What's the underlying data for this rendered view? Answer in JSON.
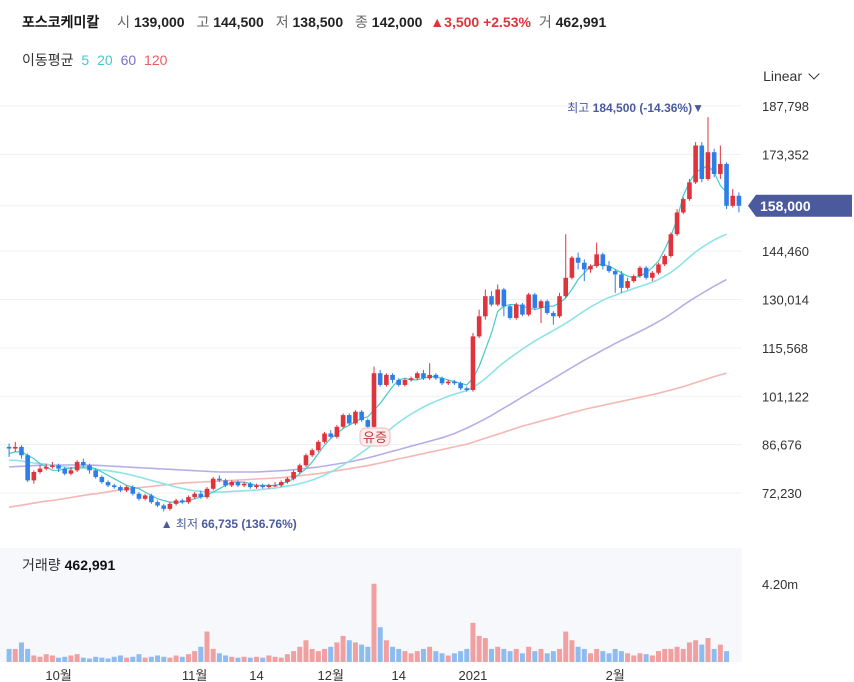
{
  "header": {
    "name": "포스코케미칼",
    "open_label": "시",
    "open": "139,000",
    "high_label": "고",
    "high": "144,500",
    "low_label": "저",
    "low": "138,500",
    "close_label": "종",
    "close": "142,000",
    "change": "▲3,500",
    "change_pct": "+2.53%",
    "volume_label": "거",
    "volume": "462,991"
  },
  "ma_legend": {
    "label": "이동평균",
    "items": [
      {
        "period": "5",
        "color": "#48c9c9"
      },
      {
        "period": "20",
        "color": "#48c9c9"
      },
      {
        "period": "60",
        "color": "#7b6fd0"
      },
      {
        "period": "120",
        "color": "#ef5a5a"
      }
    ]
  },
  "scale_toggle": "Linear",
  "volume_panel": {
    "label": "거래량",
    "value": "462,991",
    "axis_label": "4.20m"
  },
  "colors": {
    "up": "#e0333c",
    "down": "#2d7ee8",
    "ma5": "#48c9c9",
    "ma20": "#8ee3e8",
    "ma60": "#b7aee8",
    "ma120": "#f5b7b4",
    "badge": "#4a5a9c"
  },
  "chart_data": {
    "type": "candlestick",
    "y_ticks": [
      "187,798",
      "173,352",
      "158,000",
      "144,460",
      "130,014",
      "115,568",
      "101,122",
      "86,676",
      "72,230"
    ],
    "y_tick_values": [
      187798,
      173352,
      158000,
      144460,
      130014,
      115568,
      101122,
      86676,
      72230
    ],
    "current_price": "158,000",
    "ylim": [
      60000,
      192000
    ],
    "x_ticks": [
      {
        "label": "10월",
        "index": 8
      },
      {
        "label": "11월",
        "index": 30
      },
      {
        "label": "14",
        "index": 40
      },
      {
        "label": "12월",
        "index": 52
      },
      {
        "label": "14",
        "index": 63
      },
      {
        "label": "2021",
        "index": 75
      },
      {
        "label": "2월",
        "index": 98
      }
    ],
    "high_marker": {
      "label": "최고",
      "value": "184,500",
      "pct": "(-14.36%)",
      "index": 113
    },
    "low_marker": {
      "label": "최저",
      "value": "66,735",
      "pct": "(136.76%)",
      "index": 25
    },
    "event_marker": {
      "label": "유증",
      "index": 59
    },
    "candles": [
      [
        86000,
        85500,
        87000,
        83000
      ],
      [
        85500,
        86000,
        87500,
        84500
      ],
      [
        86000,
        83500,
        86500,
        82500
      ],
      [
        83500,
        76000,
        84000,
        75500
      ],
      [
        76000,
        78500,
        79000,
        75000
      ],
      [
        78500,
        79500,
        80500,
        78000
      ],
      [
        79500,
        80000,
        81000,
        79000
      ],
      [
        80000,
        80500,
        81500,
        79500
      ],
      [
        80500,
        79500,
        81000,
        78500
      ],
      [
        79500,
        78000,
        80000,
        77500
      ],
      [
        78000,
        79000,
        80000,
        77500
      ],
      [
        79000,
        81500,
        82000,
        78500
      ],
      [
        81500,
        80500,
        82500,
        80000
      ],
      [
        80500,
        79000,
        81000,
        78000
      ],
      [
        79000,
        77000,
        79500,
        76500
      ],
      [
        77000,
        75500,
        77500,
        75000
      ],
      [
        75500,
        74500,
        76000,
        74000
      ],
      [
        74500,
        74000,
        75000,
        73500
      ],
      [
        74000,
        73000,
        74500,
        72500
      ],
      [
        73000,
        74000,
        74500,
        72500
      ],
      [
        74000,
        72000,
        74500,
        71500
      ],
      [
        72000,
        70500,
        72500,
        70000
      ],
      [
        70500,
        71500,
        72000,
        70000
      ],
      [
        71500,
        69500,
        72000,
        69000
      ],
      [
        69500,
        68500,
        70000,
        68000
      ],
      [
        68500,
        67500,
        69000,
        66735
      ],
      [
        67500,
        69000,
        69500,
        67000
      ],
      [
        69000,
        70000,
        70500,
        68500
      ],
      [
        70000,
        69500,
        70500,
        69000
      ],
      [
        69500,
        71000,
        71500,
        69000
      ],
      [
        71000,
        72000,
        72500,
        70500
      ],
      [
        72000,
        71000,
        73000,
        70500
      ],
      [
        71000,
        73500,
        74000,
        70500
      ],
      [
        73500,
        76500,
        77000,
        73000
      ],
      [
        76500,
        76000,
        77500,
        75500
      ],
      [
        76000,
        74500,
        76500,
        74000
      ],
      [
        74500,
        75500,
        76000,
        74000
      ],
      [
        75500,
        74500,
        76000,
        74000
      ],
      [
        74500,
        75000,
        75500,
        74000
      ],
      [
        75000,
        74000,
        75500,
        73500
      ],
      [
        74000,
        74500,
        75000,
        73500
      ],
      [
        74500,
        74000,
        75000,
        73500
      ],
      [
        74000,
        74500,
        75000,
        73500
      ],
      [
        74500,
        74500,
        75500,
        74000
      ],
      [
        74500,
        75500,
        76000,
        74000
      ],
      [
        75500,
        76500,
        77000,
        75000
      ],
      [
        76500,
        78500,
        79000,
        76000
      ],
      [
        78500,
        80500,
        81000,
        78000
      ],
      [
        80500,
        83500,
        84000,
        80000
      ],
      [
        83500,
        85000,
        85500,
        83000
      ],
      [
        85000,
        87500,
        88000,
        84500
      ],
      [
        87500,
        90000,
        90500,
        87000
      ],
      [
        90000,
        89000,
        91000,
        88500
      ],
      [
        89000,
        92000,
        92500,
        88500
      ],
      [
        92000,
        95500,
        96000,
        91500
      ],
      [
        95500,
        93000,
        96000,
        92500
      ],
      [
        93000,
        96500,
        97000,
        92500
      ],
      [
        96500,
        94000,
        97000,
        93500
      ],
      [
        94000,
        92000,
        94500,
        91500
      ],
      [
        92000,
        108000,
        110000,
        91500
      ],
      [
        108000,
        104500,
        109000,
        104000
      ],
      [
        104500,
        107500,
        108000,
        104000
      ],
      [
        107500,
        106000,
        108000,
        105000
      ],
      [
        106000,
        104500,
        106500,
        104000
      ],
      [
        104500,
        106000,
        106500,
        104000
      ],
      [
        106000,
        106500,
        107000,
        105500
      ],
      [
        106500,
        108000,
        108500,
        106000
      ],
      [
        108000,
        106500,
        109000,
        106000
      ],
      [
        106500,
        107500,
        111000,
        106000
      ],
      [
        107500,
        106500,
        108000,
        106000
      ],
      [
        106500,
        105000,
        107000,
        104500
      ],
      [
        105000,
        105500,
        106000,
        104500
      ],
      [
        105500,
        105000,
        106000,
        104500
      ],
      [
        105000,
        103500,
        105500,
        103000
      ],
      [
        103500,
        103000,
        104000,
        102500
      ],
      [
        103000,
        119000,
        120000,
        102500
      ],
      [
        119000,
        125000,
        127000,
        118500
      ],
      [
        125000,
        131000,
        133000,
        124000
      ],
      [
        131000,
        128500,
        132500,
        128000
      ],
      [
        128500,
        133000,
        134500,
        128000
      ],
      [
        133000,
        128000,
        133500,
        125000
      ],
      [
        128000,
        124500,
        128500,
        124000
      ],
      [
        124500,
        128500,
        129000,
        124000
      ],
      [
        128500,
        125500,
        129000,
        125000
      ],
      [
        125500,
        131500,
        132000,
        125000
      ],
      [
        131500,
        127500,
        132000,
        127000
      ],
      [
        127500,
        129500,
        130000,
        123000
      ],
      [
        129500,
        126000,
        130000,
        125500
      ],
      [
        126000,
        125000,
        126500,
        122500
      ],
      [
        125000,
        131000,
        132000,
        124500
      ],
      [
        131000,
        136500,
        149500,
        130500
      ],
      [
        136500,
        142500,
        143000,
        136000
      ],
      [
        142500,
        141000,
        144000,
        139000
      ],
      [
        141000,
        139000,
        142000,
        135500
      ],
      [
        139000,
        140000,
        140500,
        138000
      ],
      [
        140000,
        143500,
        147000,
        139500
      ],
      [
        143500,
        140000,
        144000,
        139000
      ],
      [
        140000,
        138500,
        141500,
        138000
      ],
      [
        138500,
        137500,
        139000,
        132000
      ],
      [
        137500,
        133500,
        138500,
        132000
      ],
      [
        133500,
        135500,
        136500,
        133000
      ],
      [
        135500,
        137000,
        137500,
        135000
      ],
      [
        137000,
        139500,
        140000,
        136500
      ],
      [
        139500,
        136500,
        140000,
        136000
      ],
      [
        136500,
        138000,
        138500,
        135500
      ],
      [
        138000,
        140500,
        141000,
        137500
      ],
      [
        140500,
        143000,
        143500,
        140000
      ],
      [
        143000,
        149500,
        150000,
        142500
      ],
      [
        149500,
        156000,
        157000,
        149000
      ],
      [
        156000,
        160000,
        160500,
        155500
      ],
      [
        160000,
        165000,
        166000,
        159500
      ],
      [
        165000,
        176000,
        177000,
        164500
      ],
      [
        176000,
        166000,
        177000,
        165000
      ],
      [
        166000,
        174000,
        184500,
        165500
      ],
      [
        174000,
        167500,
        175000,
        166500
      ],
      [
        167500,
        170500,
        176000,
        166000
      ],
      [
        170500,
        158000,
        171000,
        157000
      ],
      [
        158000,
        161000,
        163000,
        157500
      ],
      [
        161000,
        158000,
        162000,
        156000
      ]
    ],
    "ma5": [
      84000,
      84500,
      84500,
      83500,
      82500,
      81000,
      80000,
      79000,
      79000,
      79500,
      79500,
      80000,
      80000,
      80000,
      79500,
      78500,
      77500,
      76500,
      75500,
      74500,
      74000,
      73500,
      72500,
      71500,
      70500,
      70000,
      69500,
      69500,
      69500,
      70000,
      70500,
      71000,
      71500,
      72500,
      73500,
      74500,
      75500,
      75500,
      75500,
      75000,
      74500,
      74500,
      74500,
      74500,
      75000,
      75500,
      76500,
      78000,
      79500,
      81500,
      84000,
      86500,
      88500,
      90000,
      91500,
      92500,
      93500,
      94500,
      95000,
      97000,
      99000,
      101500,
      104000,
      106000,
      106500,
      106000,
      106000,
      106500,
      107000,
      107000,
      106500,
      106000,
      105500,
      105000,
      104500,
      106500,
      110000,
      115000,
      120000,
      126500,
      128000,
      128500,
      128500,
      128000,
      127500,
      127000,
      127500,
      128000,
      128000,
      129000,
      130500,
      133000,
      136000,
      138000,
      140000,
      140500,
      140500,
      140000,
      139000,
      138000,
      137000,
      136500,
      137000,
      138000,
      139500,
      141500,
      145000,
      149000,
      154000,
      161000,
      165000,
      168000,
      169000,
      170000,
      168000,
      164000,
      162000
    ],
    "ma20": [
      82000,
      82000,
      81800,
      81500,
      81200,
      81000,
      80800,
      80500,
      80300,
      80000,
      79800,
      79700,
      79600,
      79500,
      79300,
      79100,
      78900,
      78600,
      78300,
      77900,
      77500,
      77000,
      76500,
      76000,
      75500,
      75000,
      74500,
      74000,
      73600,
      73200,
      72900,
      72700,
      72600,
      72500,
      72500,
      72600,
      72700,
      72800,
      72900,
      73000,
      73100,
      73300,
      73500,
      73700,
      74000,
      74300,
      74600,
      75000,
      75500,
      76100,
      76800,
      77600,
      78500,
      79500,
      80600,
      81800,
      83000,
      84300,
      85600,
      87100,
      88700,
      90300,
      91900,
      93300,
      94600,
      95800,
      96900,
      97900,
      98800,
      99600,
      100400,
      101100,
      101700,
      102300,
      102800,
      103800,
      105000,
      106400,
      108000,
      109700,
      111200,
      112600,
      113900,
      115200,
      116400,
      117600,
      118700,
      119700,
      120800,
      121800,
      122900,
      124100,
      125400,
      126600,
      127800,
      128800,
      129800,
      130600,
      131300,
      132000,
      132600,
      133300,
      133900,
      134500,
      135200,
      136000,
      137000,
      138100,
      139500,
      141000,
      142700,
      144200,
      145500,
      146700,
      147800,
      148700,
      149500
    ],
    "ma60": [
      80000,
      80100,
      80200,
      80300,
      80400,
      80500,
      80600,
      80600,
      80600,
      80600,
      80600,
      80600,
      80600,
      80600,
      80500,
      80400,
      80300,
      80200,
      80100,
      80000,
      79900,
      79800,
      79700,
      79600,
      79500,
      79400,
      79300,
      79200,
      79100,
      79000,
      78900,
      78800,
      78700,
      78600,
      78500,
      78500,
      78500,
      78500,
      78500,
      78500,
      78500,
      78600,
      78700,
      78800,
      78900,
      79000,
      79200,
      79400,
      79600,
      79800,
      80000,
      80300,
      80600,
      80900,
      81200,
      81500,
      81900,
      82300,
      82700,
      83200,
      83700,
      84200,
      84700,
      85200,
      85700,
      86200,
      86700,
      87200,
      87700,
      88200,
      88700,
      89300,
      90000,
      90800,
      91600,
      92500,
      93400,
      94400,
      95400,
      96500,
      97600,
      98700,
      99800,
      100900,
      102000,
      103100,
      104200,
      105300,
      106400,
      107500,
      108600,
      109700,
      110800,
      111900,
      112900,
      113900,
      114900,
      115900,
      116900,
      117800,
      118700,
      119600,
      120500,
      121400,
      122400,
      123400,
      124500,
      125700,
      127000,
      128300,
      129500,
      130700,
      131800,
      132900,
      134000,
      135000,
      136000
    ],
    "ma120": [
      68000,
      68300,
      68600,
      68900,
      69200,
      69500,
      69800,
      70000,
      70300,
      70600,
      70900,
      71200,
      71500,
      71800,
      72000,
      72300,
      72600,
      72900,
      73200,
      73400,
      73600,
      73800,
      74000,
      74200,
      74400,
      74600,
      74800,
      75000,
      75200,
      75300,
      75400,
      75500,
      75600,
      75700,
      75800,
      75900,
      76000,
      76100,
      76200,
      76300,
      76400,
      76500,
      76600,
      76700,
      76800,
      77000,
      77200,
      77400,
      77600,
      77800,
      78000,
      78300,
      78600,
      78900,
      79200,
      79500,
      79800,
      80100,
      80400,
      80800,
      81200,
      81600,
      82000,
      82400,
      82800,
      83200,
      83600,
      84000,
      84400,
      84800,
      85200,
      85600,
      86000,
      86400,
      86800,
      87400,
      88000,
      88600,
      89200,
      89800,
      90400,
      91000,
      91600,
      92200,
      92700,
      93200,
      93700,
      94200,
      94700,
      95200,
      95700,
      96200,
      96700,
      97200,
      97600,
      98000,
      98400,
      98800,
      99200,
      99600,
      100000,
      100400,
      100800,
      101200,
      101600,
      102000,
      102500,
      103000,
      103500,
      104000,
      104600,
      105200,
      105800,
      106400,
      107000,
      107500,
      108000
    ],
    "volumes": [
      0.3,
      0.3,
      0.45,
      0.3,
      0.15,
      0.12,
      0.18,
      0.15,
      0.1,
      0.12,
      0.15,
      0.18,
      0.1,
      0.08,
      0.12,
      0.1,
      0.08,
      0.12,
      0.15,
      0.1,
      0.12,
      0.18,
      0.1,
      0.12,
      0.15,
      0.12,
      0.1,
      0.15,
      0.12,
      0.18,
      0.25,
      0.35,
      0.7,
      0.3,
      0.2,
      0.15,
      0.12,
      0.1,
      0.12,
      0.1,
      0.12,
      0.1,
      0.15,
      0.12,
      0.1,
      0.18,
      0.25,
      0.35,
      0.5,
      0.3,
      0.25,
      0.3,
      0.35,
      0.45,
      0.6,
      0.5,
      0.45,
      0.4,
      0.35,
      1.8,
      0.8,
      0.5,
      0.35,
      0.3,
      0.25,
      0.2,
      0.25,
      0.3,
      0.35,
      0.25,
      0.2,
      0.15,
      0.2,
      0.25,
      0.3,
      0.9,
      0.6,
      0.55,
      0.3,
      0.35,
      0.3,
      0.25,
      0.3,
      0.2,
      0.35,
      0.25,
      0.3,
      0.2,
      0.25,
      0.3,
      0.7,
      0.5,
      0.35,
      0.3,
      0.2,
      0.3,
      0.25,
      0.2,
      0.3,
      0.25,
      0.2,
      0.15,
      0.2,
      0.18,
      0.15,
      0.25,
      0.3,
      0.3,
      0.35,
      0.3,
      0.45,
      0.5,
      0.4,
      0.55,
      0.3,
      0.4,
      0.25
    ]
  }
}
